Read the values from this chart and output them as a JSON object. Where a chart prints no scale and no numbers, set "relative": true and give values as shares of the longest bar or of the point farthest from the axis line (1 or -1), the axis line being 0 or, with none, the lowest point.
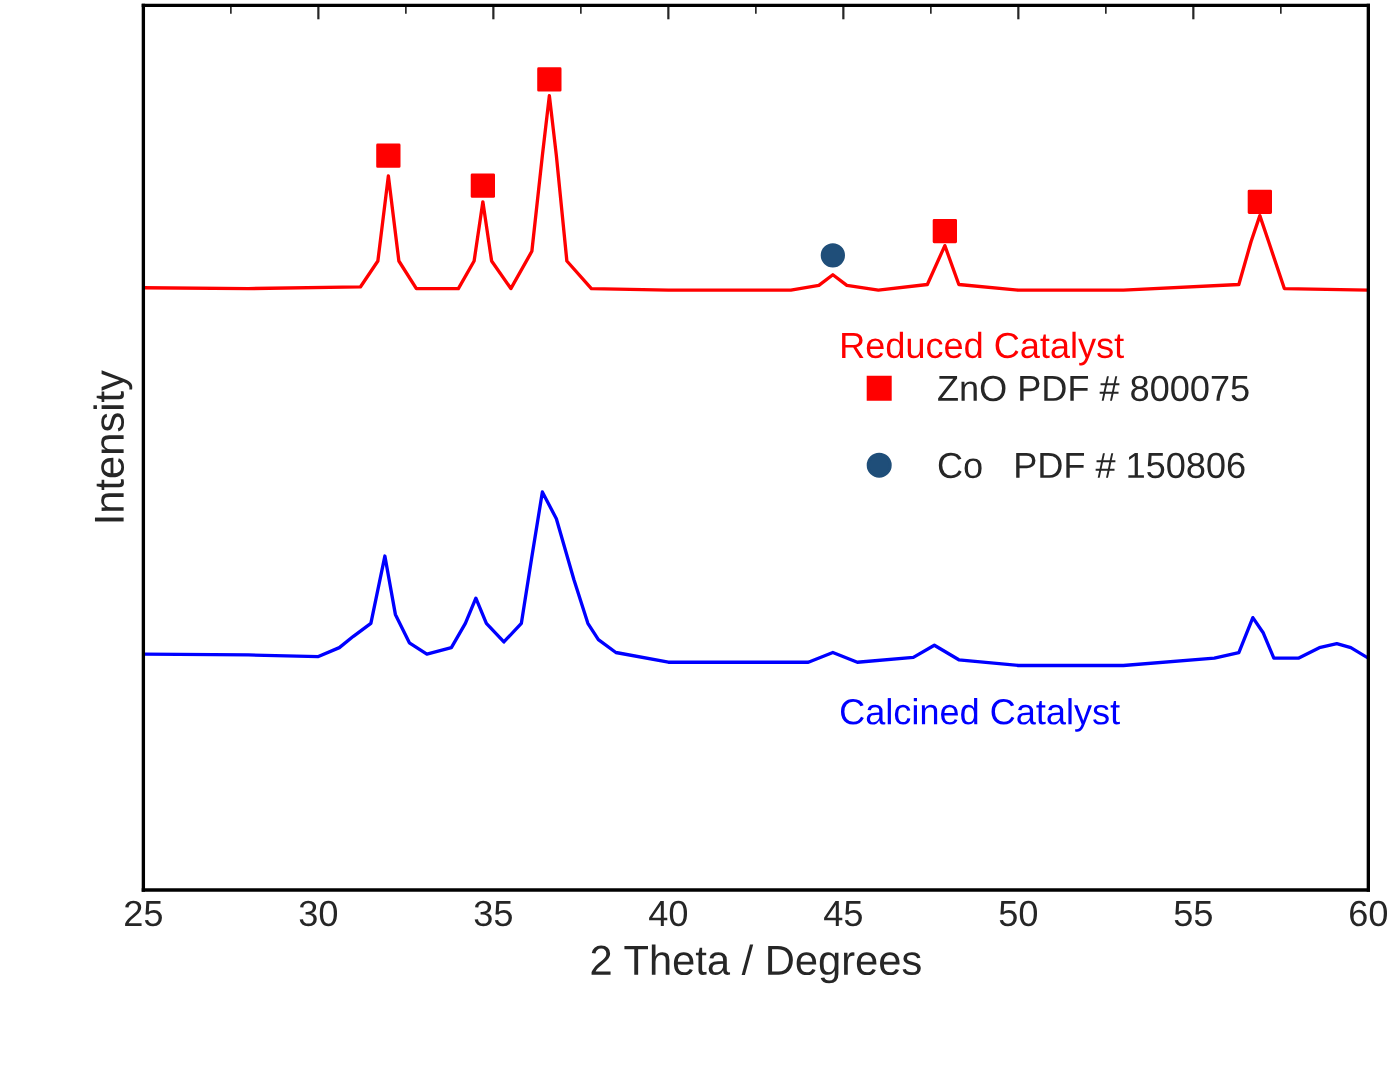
{
  "chart_data": {
    "type": "line",
    "relative": true,
    "xlabel": "2 Theta / Degrees",
    "ylabel": "Intensity",
    "xlim": [
      25,
      60
    ],
    "xticks": [
      25,
      30,
      35,
      40,
      45,
      50,
      55,
      60
    ],
    "tick_labels": "x",
    "grid": false,
    "legend": "right",
    "series": [
      {
        "color": "#ff0000",
        "x": [
          25,
          28,
          31.2,
          31.7,
          32.0,
          32.3,
          32.8,
          34.0,
          34.45,
          34.7,
          34.95,
          35.5,
          36.1,
          36.4,
          36.6,
          36.8,
          37.1,
          37.8,
          40,
          43.5,
          44.3,
          44.7,
          45.1,
          46,
          47.4,
          47.9,
          48.3,
          50,
          53,
          56.3,
          56.65,
          56.9,
          57.15,
          57.6,
          60
        ],
        "values": [
          0.743,
          0.742,
          0.744,
          0.776,
          0.881,
          0.776,
          0.742,
          0.742,
          0.776,
          0.849,
          0.776,
          0.742,
          0.788,
          0.906,
          0.98,
          0.906,
          0.776,
          0.742,
          0.74,
          0.74,
          0.746,
          0.759,
          0.746,
          0.74,
          0.747,
          0.795,
          0.747,
          0.74,
          0.74,
          0.747,
          0.8,
          0.832,
          0.8,
          0.742,
          0.74
        ]
      },
      {
        "color": "#0000ff",
        "x": [
          25,
          28,
          30,
          30.6,
          31.0,
          31.5,
          31.9,
          32.2,
          32.6,
          33.1,
          33.8,
          34.2,
          34.5,
          34.8,
          35.3,
          35.8,
          36.1,
          36.4,
          36.8,
          37.3,
          37.7,
          38,
          38.5,
          40,
          44.0,
          44.7,
          45.4,
          47.0,
          47.6,
          48.3,
          50,
          53,
          55.6,
          56.3,
          56.7,
          57.0,
          57.3,
          58.0,
          58.6,
          59.1,
          59.5,
          60
        ],
        "values": [
          0.291,
          0.29,
          0.288,
          0.299,
          0.313,
          0.329,
          0.412,
          0.34,
          0.305,
          0.291,
          0.299,
          0.329,
          0.36,
          0.329,
          0.306,
          0.329,
          0.411,
          0.491,
          0.458,
          0.383,
          0.329,
          0.309,
          0.293,
          0.281,
          0.281,
          0.293,
          0.281,
          0.287,
          0.302,
          0.284,
          0.277,
          0.277,
          0.286,
          0.293,
          0.336,
          0.317,
          0.286,
          0.286,
          0.299,
          0.304,
          0.299,
          0.286
        ]
      },
      {
        "type": "scatter",
        "name": "ZnO PDF # 800075",
        "color": "#ff0000",
        "marker": "square",
        "x": [
          32.0,
          34.7,
          36.6,
          47.9,
          56.9
        ],
        "values": [
          0.906,
          0.869,
          1.0,
          0.813,
          0.849
        ]
      },
      {
        "type": "scatter",
        "name": "Co   PDF # 150806",
        "color": "#1f4e79",
        "marker": "circle",
        "x": [
          44.7
        ],
        "values": [
          0.783
        ]
      }
    ],
    "annotations": [
      "Reduced Catalyst",
      "Calcined Catalyst"
    ]
  }
}
